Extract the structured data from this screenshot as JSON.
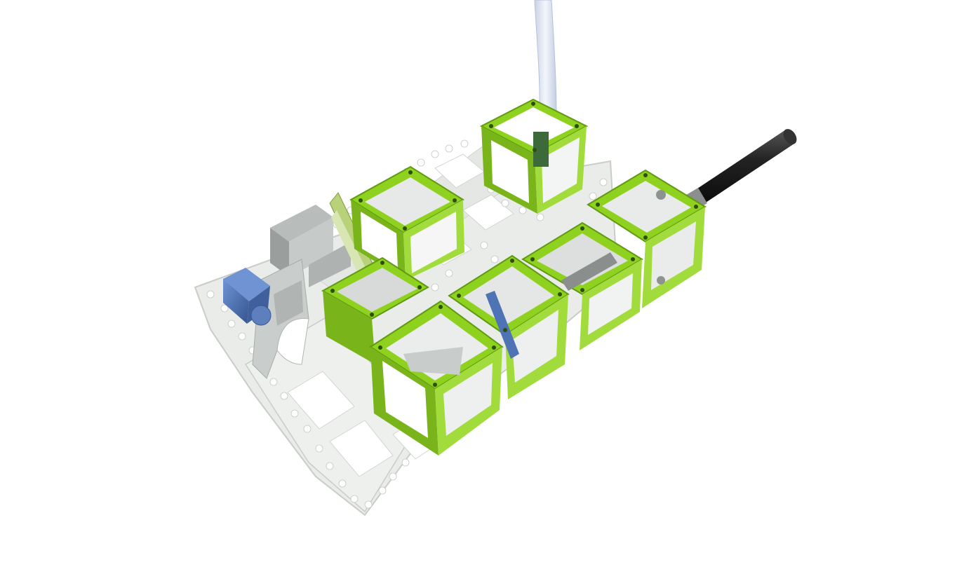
{
  "scene": {
    "description_visible_text": "",
    "colors": {
      "background": "#ffffff",
      "cube_green": "#8fd11f",
      "cube_green_dark": "#5f9a10",
      "cube_green_light": "#b5e85a",
      "breadboard": "#e9ece8",
      "breadboard_edge": "#c9ccc7",
      "mount_grey": "#bfc3c2",
      "mount_grey_dark": "#9a9e9d",
      "inner_grey": "#d8dbda",
      "blue_component": "#4e74b6",
      "rod_black": "#1e1e1e",
      "fiber_light": "#dfe7f4"
    },
    "icons": [
      "optical-breadboard",
      "cube-module",
      "fiber-cable",
      "black-rod",
      "mount-block",
      "blue-motor"
    ]
  }
}
